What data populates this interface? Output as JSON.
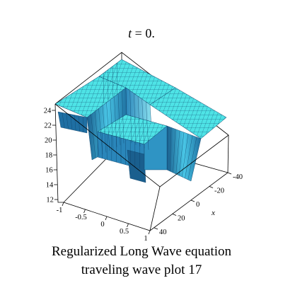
{
  "chart_data": {
    "type": "surface3d",
    "title": {
      "var": "t",
      "rest": " = 0."
    },
    "x_axis": {
      "label": "x",
      "range": [
        -40,
        40
      ],
      "ticks": [
        "-40",
        "-20",
        "0",
        "20",
        "40"
      ]
    },
    "y_axis": {
      "label": "",
      "range": [
        -1,
        1
      ],
      "ticks": [
        "-1",
        "-0.5",
        "0",
        "0.5",
        "1"
      ]
    },
    "z_axis": {
      "label": "",
      "range": [
        12,
        24
      ],
      "ticks": [
        "12",
        "14",
        "16",
        "18",
        "20",
        "22",
        "24"
      ]
    },
    "surface": {
      "description_levels": {
        "high": 24,
        "low": 20
      },
      "colors": {
        "top": "#4ee3e6",
        "side": "#2f94c4",
        "side_dark": "#1a5f8e",
        "mesh": "#0d3f66"
      }
    }
  },
  "caption": {
    "line1": "Regularized Long Wave equation",
    "line2": "traveling wave plot 17"
  }
}
